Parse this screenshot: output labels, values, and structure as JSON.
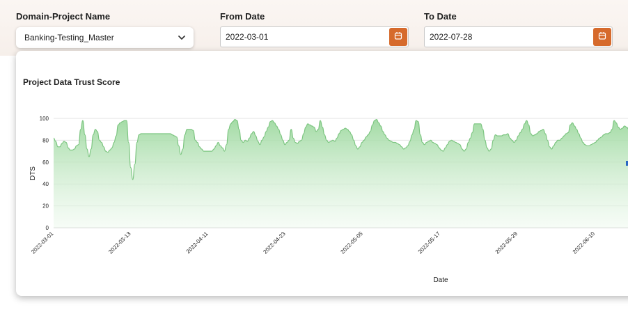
{
  "filters": {
    "domain_project": {
      "label": "Domain-Project Name",
      "value": "Banking-Testing_Master"
    },
    "from_date": {
      "label": "From Date",
      "value": "2022-03-01"
    },
    "to_date": {
      "label": "To Date",
      "value": "2022-07-28"
    },
    "calendar_icon": "calendar-icon",
    "dropdown_icon": "chevron-down-icon",
    "accent_color": "#d66a2c"
  },
  "card": {
    "title": "Project Data Trust Score"
  },
  "chart_data": {
    "type": "area",
    "title": "Project Data Trust Score",
    "xlabel": "Date",
    "ylabel": "DTS",
    "ylim": [
      0,
      100
    ],
    "yticks": [
      0,
      20,
      40,
      60,
      80,
      100
    ],
    "xticks": [
      "2022-03-01",
      "2022-03-13",
      "2022-04-11",
      "2022-04-23",
      "2022-05-05",
      "2022-05-17",
      "2022-05-29",
      "2022-06-10"
    ],
    "grid": true,
    "fill_color": "#9ed9a0",
    "line_color": "#7cc580",
    "series": [
      {
        "values": [
          82,
          79,
          74,
          74,
          77,
          79,
          78,
          73,
          71,
          71,
          72,
          75,
          76,
          90,
          98,
          85,
          72,
          65,
          72,
          85,
          90,
          88,
          80,
          78,
          74,
          70,
          69,
          71,
          73,
          78,
          84,
          94,
          96,
          97,
          98,
          98,
          78,
          55,
          44,
          58,
          78,
          85,
          86,
          86,
          86,
          86,
          86,
          86,
          86,
          86,
          86,
          86,
          86,
          86,
          86,
          86,
          86,
          85,
          84,
          83,
          75,
          67,
          72,
          85,
          90,
          90,
          90,
          89,
          80,
          78,
          74,
          72,
          70,
          70,
          70,
          70,
          70,
          72,
          75,
          78,
          75,
          73,
          70,
          76,
          90,
          95,
          97,
          99,
          98,
          90,
          80,
          78,
          80,
          79,
          82,
          86,
          88,
          84,
          79,
          76,
          80,
          83,
          88,
          92,
          97,
          98,
          96,
          93,
          90,
          85,
          80,
          76,
          78,
          80,
          90,
          82,
          78,
          77,
          79,
          80,
          86,
          92,
          95,
          94,
          93,
          92,
          88,
          90,
          98,
          92,
          85,
          80,
          78,
          79,
          80,
          79,
          82,
          86,
          89,
          90,
          91,
          90,
          88,
          85,
          80,
          75,
          72,
          74,
          78,
          80,
          83,
          85,
          88,
          94,
          98,
          99,
          96,
          93,
          88,
          85,
          82,
          80,
          79,
          78,
          78,
          77,
          76,
          74,
          72,
          73,
          75,
          79,
          85,
          90,
          98,
          97,
          85,
          78,
          76,
          78,
          79,
          80,
          78,
          77,
          76,
          73,
          71,
          70,
          73,
          76,
          79,
          80,
          79,
          78,
          77,
          76,
          72,
          70,
          72,
          78,
          82,
          87,
          95,
          95,
          95,
          95,
          90,
          80,
          73,
          70,
          72,
          80,
          85,
          84,
          84,
          84,
          85,
          85,
          86,
          82,
          80,
          78,
          80,
          84,
          87,
          90,
          95,
          98,
          94,
          86,
          84,
          85,
          86,
          88,
          89,
          90,
          86,
          80,
          74,
          72,
          75,
          78,
          80,
          80,
          82,
          84,
          86,
          87,
          94,
          96,
          93,
          90,
          86,
          82,
          78,
          76,
          75,
          75,
          76,
          77,
          78,
          80,
          82,
          83,
          85,
          86,
          86,
          87,
          90,
          98,
          96,
          92,
          90,
          91,
          93,
          92,
          90
        ]
      }
    ]
  }
}
